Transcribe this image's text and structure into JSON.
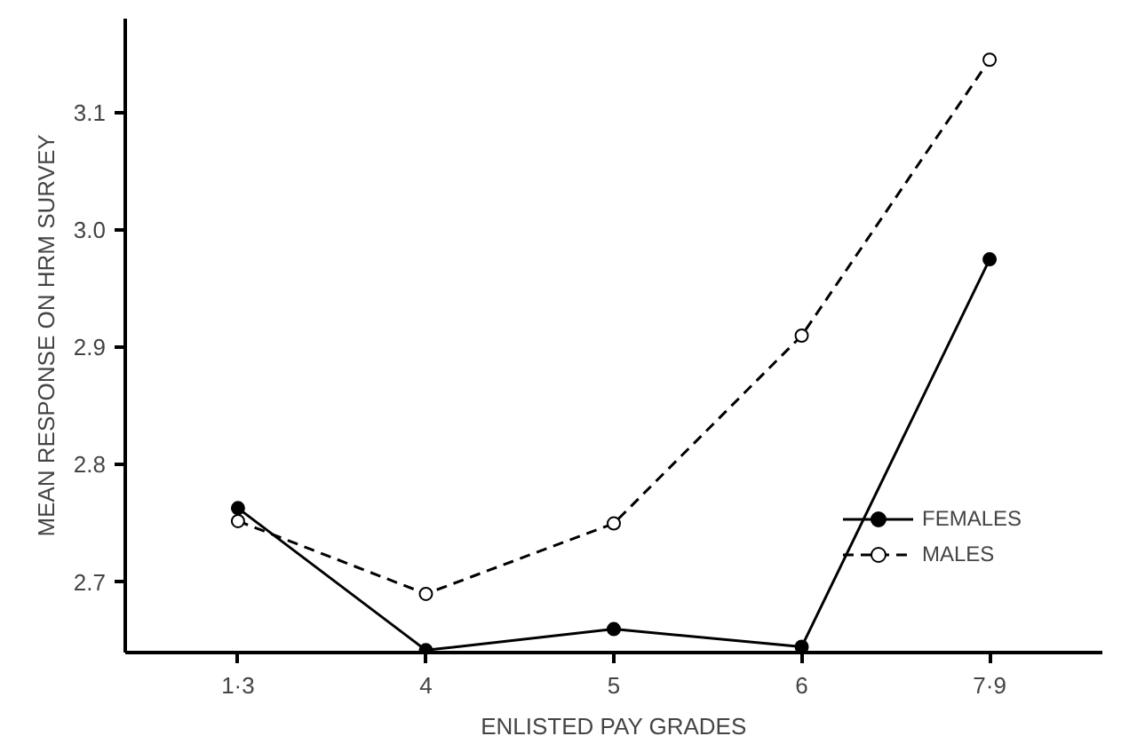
{
  "chart_data": {
    "type": "line",
    "xlabel": "ENLISTED PAY GRADES",
    "ylabel": "MEAN RESPONSE ON HRM SURVEY",
    "categories": [
      "1·3",
      "4",
      "5",
      "6",
      "7·9"
    ],
    "series": [
      {
        "name": "FEMALES",
        "color": "#000000",
        "marker": "circle",
        "line_style": "solid",
        "values": [
          2.763,
          2.642,
          2.66,
          2.645,
          2.975
        ]
      },
      {
        "name": "MALES",
        "color": "#000000",
        "marker": "open circle",
        "line_style": "dashed",
        "values": [
          2.752,
          2.69,
          2.75,
          2.91,
          3.145
        ]
      }
    ],
    "ylim": [
      2.64,
      3.18
    ],
    "yticks": [
      2.7,
      2.8,
      2.9,
      {
        "value": 3.0,
        "label": "3.0"
      },
      3.1
    ],
    "grid": false,
    "legend": "bottom right"
  }
}
